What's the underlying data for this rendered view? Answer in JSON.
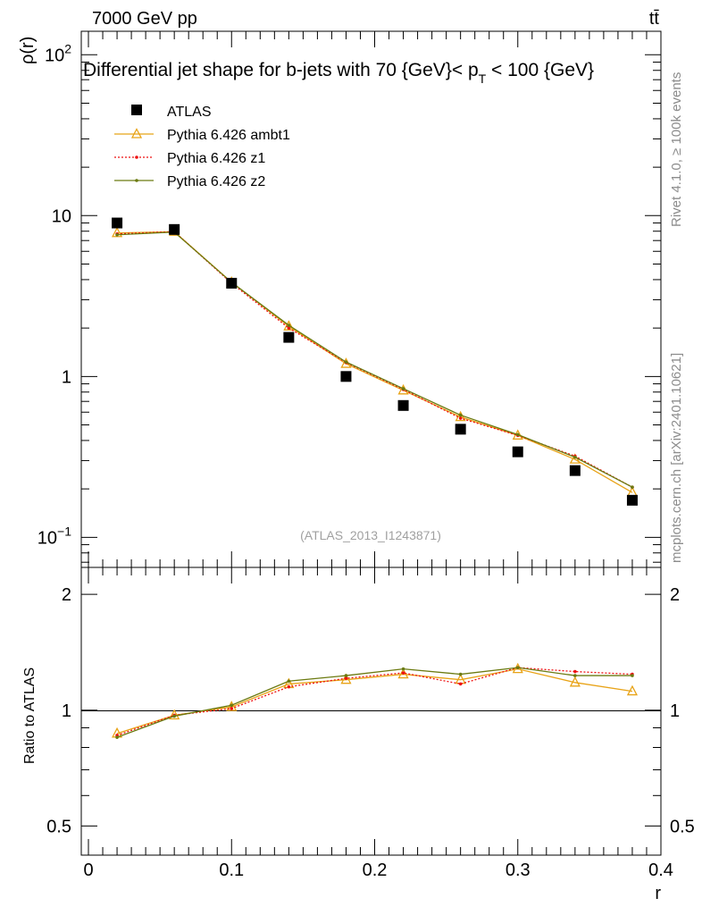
{
  "header": {
    "energy_label": "7000 GeV pp",
    "process_label": "tt̄",
    "title_prefix": "Differential jet shape for b-jets with 70 {GeV}< p",
    "title_sub": "T",
    "title_suffix": " < 100 {GeV}"
  },
  "side": {
    "rivet": "Rivet 4.1.0, ≥ 100k events",
    "mcplots": "mcplots.cern.ch [arXiv:2401.10621]"
  },
  "analysis_id": "(ATLAS_2013_I1243871)",
  "colors": {
    "atlas": "#000000",
    "ambt1": "#e8a317",
    "z1": "#ee1111",
    "z2": "#6b7a10"
  },
  "chart_data": [
    {
      "panel": "main",
      "type": "line",
      "yscale": "log",
      "ylabel": "ρ(r)",
      "xlim": [
        -0.005,
        0.4
      ],
      "ylim": [
        0.065,
        140
      ],
      "y_ticks": [
        {
          "value": 0.1,
          "base": "10",
          "exp": "−1"
        },
        {
          "value": 1,
          "base": "1",
          "exp": ""
        },
        {
          "value": 10,
          "base": "10",
          "exp": ""
        },
        {
          "value": 100,
          "base": "10",
          "exp": "2"
        }
      ],
      "x": [
        0.02,
        0.06,
        0.1,
        0.14,
        0.18,
        0.22,
        0.26,
        0.3,
        0.34,
        0.38
      ],
      "series": [
        {
          "name": "ATLAS",
          "key": "atlas",
          "marker": "square",
          "values": [
            9.0,
            8.2,
            3.8,
            1.75,
            1.0,
            0.66,
            0.47,
            0.34,
            0.26,
            0.17
          ]
        },
        {
          "name": "Pythia 6.426 ambt1",
          "key": "ambt1",
          "marker": "triangle",
          "values": [
            7.8,
            7.95,
            3.85,
            2.05,
            1.2,
            0.82,
            0.56,
            0.43,
            0.305,
            0.19
          ]
        },
        {
          "name": "Pythia 6.426 z1",
          "key": "z1",
          "marker": "dot",
          "values": [
            7.7,
            7.95,
            3.8,
            2.0,
            1.22,
            0.83,
            0.55,
            0.43,
            0.32,
            0.205
          ]
        },
        {
          "name": "Pythia 6.426 z2",
          "key": "z2",
          "marker": "dot",
          "values": [
            7.6,
            7.9,
            3.85,
            2.08,
            1.23,
            0.84,
            0.575,
            0.435,
            0.315,
            0.205
          ]
        }
      ]
    },
    {
      "panel": "ratio",
      "type": "line",
      "yscale": "log",
      "ylabel": "Ratio to ATLAS",
      "xlabel": "r",
      "xlim": [
        -0.005,
        0.4
      ],
      "ylim": [
        0.42,
        2.35
      ],
      "y_ticks": [
        0.5,
        1,
        2
      ],
      "x_ticks": [
        0,
        0.1,
        0.2,
        0.3,
        0.4
      ],
      "x": [
        0.02,
        0.06,
        0.1,
        0.14,
        0.18,
        0.22,
        0.26,
        0.3,
        0.34,
        0.38
      ],
      "series": [
        {
          "name": "Pythia 6.426 ambt1",
          "key": "ambt1",
          "marker": "triangle",
          "values": [
            0.87,
            0.97,
            1.02,
            1.17,
            1.2,
            1.24,
            1.2,
            1.28,
            1.18,
            1.12
          ]
        },
        {
          "name": "Pythia 6.426 z1",
          "key": "z1",
          "marker": "dot",
          "values": [
            0.86,
            0.97,
            1.01,
            1.15,
            1.21,
            1.25,
            1.17,
            1.29,
            1.26,
            1.24
          ]
        },
        {
          "name": "Pythia 6.426 z2",
          "key": "z2",
          "marker": "dot",
          "values": [
            0.85,
            0.965,
            1.03,
            1.19,
            1.23,
            1.28,
            1.24,
            1.29,
            1.23,
            1.23
          ]
        }
      ]
    }
  ]
}
